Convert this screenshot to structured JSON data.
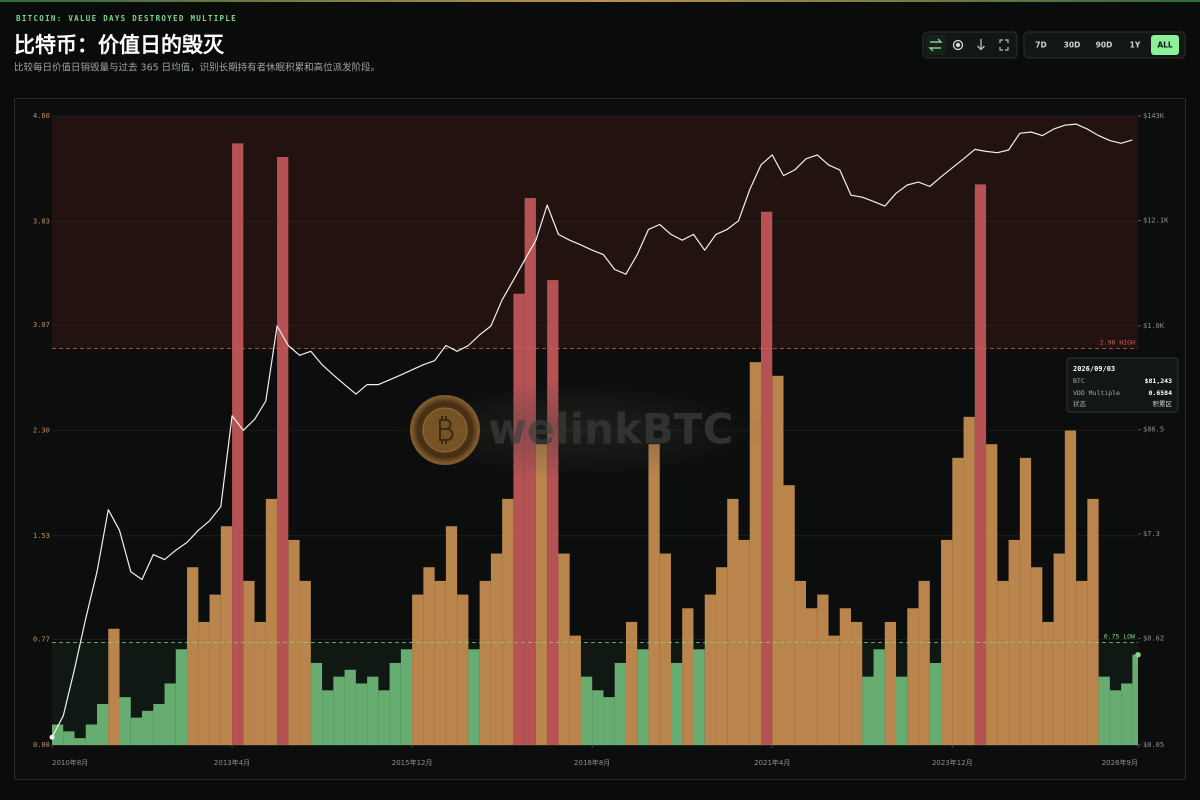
{
  "header": {
    "kicker": "BITCOIN: VALUE DAYS DESTROYED MULTIPLE",
    "title": "比特币：价值日的毁灭",
    "subtitle": "比较每日价值日销毁量与过去 365 日均值，识别长期持有者休眠积累和高位派发阶段。"
  },
  "controls": {
    "ranges": [
      "7D",
      "30D",
      "90D",
      "1Y",
      "ALL"
    ],
    "active": "ALL"
  },
  "watermark": "welinkBTC",
  "tooltip": {
    "date": "2026/09/03",
    "btc": "$81,243",
    "vdd": "0.6584",
    "state_label": "状态",
    "state": "积累区"
  },
  "chart_data": {
    "type": "area",
    "x": [
      "2010-08",
      "2010-10",
      "2010-12",
      "2011-02",
      "2011-04",
      "2011-06",
      "2011-08",
      "2011-10",
      "2011-12",
      "2012-02",
      "2012-04",
      "2012-06",
      "2012-08",
      "2012-10",
      "2012-12",
      "2013-02",
      "2013-04",
      "2013-06",
      "2013-08",
      "2013-10",
      "2013-12",
      "2014-02",
      "2014-04",
      "2014-06",
      "2014-08",
      "2014-10",
      "2014-12",
      "2015-02",
      "2015-04",
      "2015-06",
      "2015-08",
      "2015-10",
      "2015-12",
      "2016-02",
      "2016-04",
      "2016-06",
      "2016-08",
      "2016-10",
      "2016-12",
      "2017-02",
      "2017-04",
      "2017-06",
      "2017-08",
      "2017-10",
      "2017-12",
      "2018-02",
      "2018-04",
      "2018-06",
      "2018-08",
      "2018-10",
      "2018-12",
      "2019-02",
      "2019-04",
      "2019-06",
      "2019-08",
      "2019-10",
      "2019-12",
      "2020-02",
      "2020-04",
      "2020-06",
      "2020-08",
      "2020-10",
      "2020-12",
      "2021-02",
      "2021-04",
      "2021-06",
      "2021-08",
      "2021-10",
      "2021-12",
      "2022-02",
      "2022-04",
      "2022-06",
      "2022-08",
      "2022-10",
      "2022-12",
      "2023-02",
      "2023-04",
      "2023-06",
      "2023-08",
      "2023-10",
      "2023-12",
      "2024-02",
      "2024-04",
      "2024-06",
      "2024-08",
      "2024-10",
      "2024-12",
      "2025-02",
      "2025-04",
      "2025-06",
      "2025-08",
      "2025-10",
      "2025-12",
      "2026-02",
      "2026-04",
      "2026-06",
      "2026-08"
    ],
    "xlim": [
      "2010-08",
      "2026-09"
    ],
    "xticks": [
      {
        "value": "2010-08",
        "label": "2010年8月"
      },
      {
        "value": "2013-04",
        "label": "2013年4月"
      },
      {
        "value": "2015-12",
        "label": "2015年12月"
      },
      {
        "value": "2018-08",
        "label": "2018年8月"
      },
      {
        "value": "2021-04",
        "label": "2021年4月"
      },
      {
        "value": "2023-12",
        "label": "2023年12月"
      },
      {
        "value": "2026-09",
        "label": "2026年9月"
      }
    ],
    "ylim": [
      0,
      4.6
    ],
    "yticks": [
      {
        "value": 0,
        "label": "0.00"
      },
      0.77,
      1.53,
      {
        "value": 2.3,
        "label": "2.30"
      },
      3.07,
      3.83,
      {
        "value": 4.6,
        "label": "4.60"
      }
    ],
    "y2lim": [
      0.05,
      143000
    ],
    "y2log": true,
    "y2ticks": [
      {
        "value": 0.05,
        "label": "$0.05"
      },
      {
        "value": 0.62,
        "label": "$0.62"
      },
      {
        "value": 7.3,
        "label": "$7.3"
      },
      {
        "value": 86.5,
        "label": "$86.5"
      },
      {
        "value": 1000,
        "label": "$1.0K"
      },
      {
        "value": 12100,
        "label": "$12.1K"
      },
      {
        "value": 143000,
        "label": "$143K"
      }
    ],
    "grid": true,
    "thresholds": {
      "high": {
        "value": 2.9,
        "label": "2.90 HIGH",
        "color": "#d0605c"
      },
      "low": {
        "value": 0.75,
        "label": "0.75 LOW",
        "color": "#7fd68a"
      }
    },
    "zone_colors": {
      "low": "#6fbb7b",
      "mid": "#c98f52",
      "high": "#c4585a"
    },
    "series": [
      {
        "name": "VDD Multiple",
        "values": [
          0.15,
          0.1,
          0.05,
          0.15,
          0.3,
          0.85,
          0.35,
          0.2,
          0.25,
          0.3,
          0.45,
          0.7,
          1.3,
          0.9,
          1.1,
          1.6,
          4.4,
          1.2,
          0.9,
          1.8,
          4.3,
          1.5,
          1.2,
          0.6,
          0.4,
          0.5,
          0.55,
          0.45,
          0.5,
          0.4,
          0.6,
          0.7,
          1.1,
          1.3,
          1.2,
          1.6,
          1.1,
          0.7,
          1.2,
          1.4,
          1.8,
          3.3,
          4.0,
          2.2,
          3.4,
          1.4,
          0.8,
          0.5,
          0.4,
          0.35,
          0.6,
          0.9,
          0.7,
          2.2,
          1.4,
          0.6,
          1.0,
          0.7,
          1.1,
          1.3,
          1.8,
          1.5,
          2.8,
          3.9,
          2.7,
          1.9,
          1.2,
          1.0,
          1.1,
          0.8,
          1.0,
          0.9,
          0.5,
          0.7,
          0.9,
          0.5,
          1.0,
          1.2,
          0.6,
          1.5,
          2.1,
          2.4,
          4.1,
          2.2,
          1.2,
          1.5,
          2.1,
          1.3,
          0.9,
          1.4,
          2.3,
          1.2,
          1.8,
          0.5,
          0.4,
          0.45,
          0.66
        ]
      },
      {
        "name": "BTC",
        "axis": "y2",
        "color": "#f0f0ee",
        "values": [
          0.06,
          0.1,
          0.3,
          1.0,
          3,
          13,
          8,
          3,
          2.5,
          4.5,
          4,
          5,
          6,
          8,
          10,
          14,
          120,
          85,
          110,
          170,
          1000,
          630,
          500,
          550,
          400,
          315,
          250,
          200,
          250,
          250,
          280,
          315,
          355,
          400,
          440,
          630,
          550,
          630,
          810,
          1000,
          1860,
          2950,
          4770,
          7600,
          17400,
          8700,
          7600,
          6800,
          6000,
          5400,
          3800,
          3400,
          5400,
          9800,
          11000,
          8700,
          7600,
          8700,
          6000,
          8700,
          9800,
          12000,
          25000,
          45000,
          57000,
          35000,
          40000,
          52000,
          57000,
          45000,
          40000,
          22000,
          21000,
          19000,
          17000,
          23000,
          28000,
          30000,
          27000,
          34000,
          42000,
          52000,
          65000,
          62000,
          60000,
          64000,
          95000,
          98000,
          90000,
          105000,
          115000,
          118000,
          105000,
          90000,
          80000,
          75000,
          81243
        ]
      }
    ]
  }
}
